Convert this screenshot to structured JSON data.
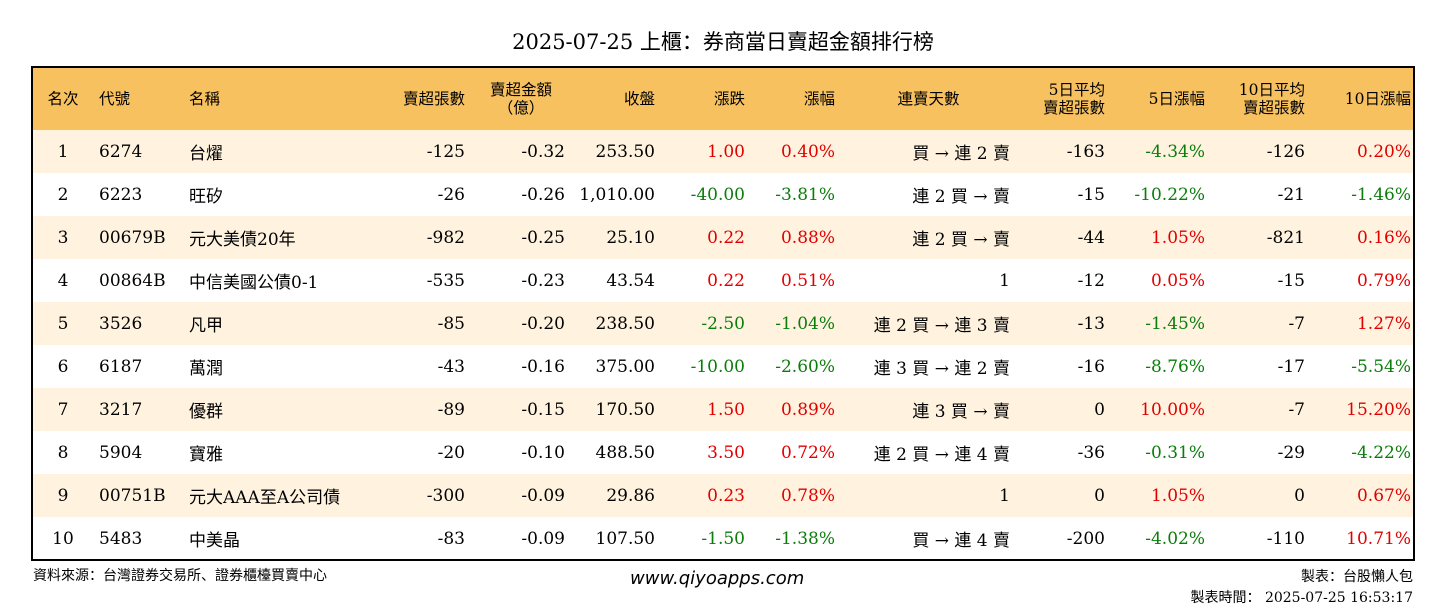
{
  "title": "2025-07-25 上櫃：券商當日賣超金額排行榜",
  "headers": {
    "rank": "名次",
    "code": "代號",
    "name": "名稱",
    "sell_vol": "賣超張數",
    "sell_amt_1": "賣超金額",
    "sell_amt_2": "（億）",
    "close": "收盤",
    "change": "漲跌",
    "change_pct": "漲幅",
    "streak": "連賣天數",
    "avg5_1": "5日平均",
    "avg5_2": "賣超張數",
    "chg5": "5日漲幅",
    "avg10_1": "10日平均",
    "avg10_2": "賣超張數",
    "chg10": "10日漲幅"
  },
  "colors": {
    "header_bg": "#f7c160",
    "odd_row_bg": "#fff3e0",
    "up": "#e00000",
    "down": "#0a7d0a"
  },
  "rows": [
    {
      "rank": "1",
      "code": "6274",
      "name": "台燿",
      "sell_vol": "-125",
      "sell_amt": "-0.32",
      "close": "253.50",
      "change": "1.00",
      "change_pct": "0.40%",
      "streak": "買 → 連 2 賣",
      "avg5": "-163",
      "chg5": "-4.34%",
      "avg10": "-126",
      "chg10": "0.20%"
    },
    {
      "rank": "2",
      "code": "6223",
      "name": "旺矽",
      "sell_vol": "-26",
      "sell_amt": "-0.26",
      "close": "1,010.00",
      "change": "-40.00",
      "change_pct": "-3.81%",
      "streak": "連 2 買 → 賣",
      "avg5": "-15",
      "chg5": "-10.22%",
      "avg10": "-21",
      "chg10": "-1.46%"
    },
    {
      "rank": "3",
      "code": "00679B",
      "name": "元大美債20年",
      "sell_vol": "-982",
      "sell_amt": "-0.25",
      "close": "25.10",
      "change": "0.22",
      "change_pct": "0.88%",
      "streak": "連 2 買 → 賣",
      "avg5": "-44",
      "chg5": "1.05%",
      "avg10": "-821",
      "chg10": "0.16%"
    },
    {
      "rank": "4",
      "code": "00864B",
      "name": "中信美國公債0-1",
      "sell_vol": "-535",
      "sell_amt": "-0.23",
      "close": "43.54",
      "change": "0.22",
      "change_pct": "0.51%",
      "streak": "1",
      "avg5": "-12",
      "chg5": "0.05%",
      "avg10": "-15",
      "chg10": "0.79%"
    },
    {
      "rank": "5",
      "code": "3526",
      "name": "凡甲",
      "sell_vol": "-85",
      "sell_amt": "-0.20",
      "close": "238.50",
      "change": "-2.50",
      "change_pct": "-1.04%",
      "streak": "連 2 買 → 連 3 賣",
      "avg5": "-13",
      "chg5": "-1.45%",
      "avg10": "-7",
      "chg10": "1.27%"
    },
    {
      "rank": "6",
      "code": "6187",
      "name": "萬潤",
      "sell_vol": "-43",
      "sell_amt": "-0.16",
      "close": "375.00",
      "change": "-10.00",
      "change_pct": "-2.60%",
      "streak": "連 3 買 → 連 2 賣",
      "avg5": "-16",
      "chg5": "-8.76%",
      "avg10": "-17",
      "chg10": "-5.54%"
    },
    {
      "rank": "7",
      "code": "3217",
      "name": "優群",
      "sell_vol": "-89",
      "sell_amt": "-0.15",
      "close": "170.50",
      "change": "1.50",
      "change_pct": "0.89%",
      "streak": "連 3 買 → 賣",
      "avg5": "0",
      "chg5": "10.00%",
      "avg10": "-7",
      "chg10": "15.20%"
    },
    {
      "rank": "8",
      "code": "5904",
      "name": "寶雅",
      "sell_vol": "-20",
      "sell_amt": "-0.10",
      "close": "488.50",
      "change": "3.50",
      "change_pct": "0.72%",
      "streak": "連 2 買 → 連 4 賣",
      "avg5": "-36",
      "chg5": "-0.31%",
      "avg10": "-29",
      "chg10": "-4.22%"
    },
    {
      "rank": "9",
      "code": "00751B",
      "name": "元大AAA至A公司債",
      "sell_vol": "-300",
      "sell_amt": "-0.09",
      "close": "29.86",
      "change": "0.23",
      "change_pct": "0.78%",
      "streak": "1",
      "avg5": "0",
      "chg5": "1.05%",
      "avg10": "0",
      "chg10": "0.67%"
    },
    {
      "rank": "10",
      "code": "5483",
      "name": "中美晶",
      "sell_vol": "-83",
      "sell_amt": "-0.09",
      "close": "107.50",
      "change": "-1.50",
      "change_pct": "-1.38%",
      "streak": "買 → 連 4 賣",
      "avg5": "-200",
      "chg5": "-4.02%",
      "avg10": "-110",
      "chg10": "10.71%"
    }
  ],
  "footer": {
    "source": "資料來源：台灣證券交易所、證券櫃檯買賣中心",
    "website": "www.qiyoapps.com",
    "maker": "製表：台股懶人包",
    "made_time": "製表時間： 2025-07-25 16:53:17"
  }
}
